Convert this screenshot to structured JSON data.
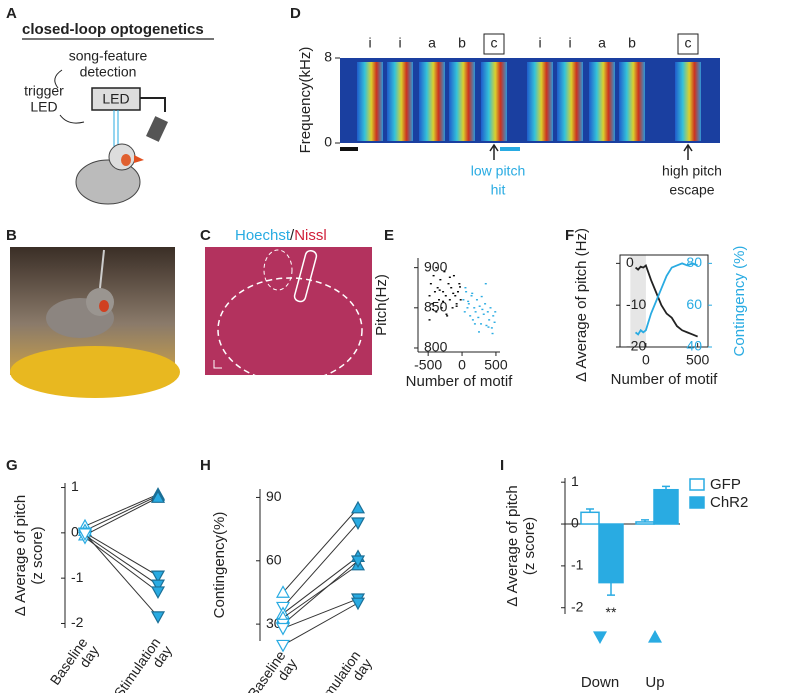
{
  "panel_labels": [
    "A",
    "B",
    "C",
    "D",
    "E",
    "F",
    "G",
    "H",
    "I"
  ],
  "schematic": {
    "title": "closed-loop optogenetics",
    "detection": [
      "song-feature",
      "detection"
    ],
    "trigger": [
      "trigger",
      "LED"
    ],
    "device": "LED"
  },
  "histology": {
    "stain_parts": [
      "Hoechst",
      "/",
      "Nissl"
    ]
  },
  "spectrogram": {
    "ylabel": "Frequency(kHz)",
    "ylim": [
      0,
      8
    ],
    "yticks": [
      0,
      8
    ],
    "syllables": [
      "i",
      "i",
      "a",
      "b",
      "c",
      "i",
      "i",
      "a",
      "b",
      "c"
    ],
    "targets": [
      false,
      false,
      false,
      false,
      true,
      false,
      false,
      false,
      false,
      true
    ],
    "annotations": [
      [
        "low pitch",
        "hit"
      ],
      [
        "high pitch",
        "escape"
      ]
    ]
  },
  "chart_data": [
    {
      "type": "scatter",
      "ylabel": "Pitch(Hz)",
      "xlabel": "Number of motif",
      "xlim": [
        -650,
        560
      ],
      "ylim": [
        795,
        912
      ],
      "xticks": [
        -500,
        0,
        500
      ],
      "yticks": [
        800,
        850,
        900
      ],
      "series": [
        {
          "color": "#000000",
          "x": [
            -480,
            -460,
            -440,
            -420,
            -400,
            -380,
            -360,
            -340,
            -320,
            -300,
            -280,
            -260,
            -240,
            -220,
            -200,
            -180,
            -160,
            -140,
            -120,
            -100,
            -80,
            -60,
            -40,
            -20,
            -480,
            -430,
            -380,
            -330,
            -280,
            -230,
            -180,
            -130,
            -80,
            -30
          ],
          "values": [
            865,
            880,
            855,
            890,
            870,
            845,
            875,
            860,
            885,
            850,
            870,
            895,
            865,
            840,
            880,
            860,
            875,
            850,
            890,
            865,
            855,
            870,
            880,
            860,
            835,
            848,
            900,
            872,
            858,
            842,
            888,
            868,
            852,
            876
          ]
        },
        {
          "color": "#29abe2",
          "x": [
            20,
            40,
            60,
            80,
            100,
            120,
            140,
            160,
            180,
            200,
            220,
            240,
            260,
            280,
            300,
            320,
            340,
            360,
            380,
            400,
            420,
            440,
            460,
            480,
            50,
            150,
            250,
            350,
            450,
            90,
            190,
            290,
            390,
            490
          ],
          "values": [
            860,
            845,
            870,
            850,
            855,
            840,
            865,
            835,
            850,
            845,
            860,
            838,
            852,
            830,
            848,
            842,
            855,
            828,
            845,
            835,
            850,
            825,
            840,
            832,
            875,
            868,
            820,
            880,
            818,
            858,
            830,
            864,
            826,
            845
          ]
        }
      ]
    },
    {
      "type": "line",
      "xlabel": "Number of motif",
      "ylabel": "Δ Average of pitch (Hz)",
      "y2label": "Contingency (%)",
      "xlim": [
        -250,
        600
      ],
      "xticks": [
        0,
        500
      ],
      "ylim": [
        -20,
        2
      ],
      "yticks": [
        -20,
        -10,
        0
      ],
      "y2lim": [
        40,
        84
      ],
      "y2ticks": [
        40,
        60,
        80
      ],
      "baseline_shade": [
        -150,
        0
      ],
      "x": [
        -100,
        -75,
        -50,
        -25,
        0,
        50,
        100,
        150,
        200,
        250,
        300,
        350,
        400,
        450,
        500
      ],
      "series": [
        {
          "color": "#222222",
          "values": [
            -1,
            -1.5,
            -0.8,
            -1,
            -0.5,
            -4,
            -7,
            -10,
            -12,
            -13,
            -15,
            -16,
            -16.5,
            -17,
            -17.5
          ]
        },
        {
          "color": "#29abe2",
          "axis": "y2",
          "values": [
            47,
            46,
            48,
            47,
            48,
            56,
            62,
            68,
            74,
            78,
            79,
            80,
            79,
            80,
            79
          ]
        }
      ]
    },
    {
      "type": "paired",
      "categories": [
        [
          "Baseline",
          "day"
        ],
        [
          "Stimulation",
          "day"
        ]
      ],
      "ylabel": [
        "Δ Average of pitch",
        "(z score)"
      ],
      "ylim": [
        -2.1,
        1.1
      ],
      "yticks": [
        -2,
        -1,
        0,
        1
      ],
      "color": "#29abe2",
      "series": [
        {
          "marker": "up",
          "values": [
            0.15,
            0.85
          ]
        },
        {
          "marker": "up",
          "values": [
            0.05,
            0.82
          ]
        },
        {
          "marker": "up",
          "values": [
            -0.05,
            0.78
          ]
        },
        {
          "marker": "down",
          "values": [
            0.0,
            -0.95
          ]
        },
        {
          "marker": "down",
          "values": [
            -0.05,
            -1.15
          ]
        },
        {
          "marker": "down",
          "values": [
            -0.1,
            -1.3
          ]
        },
        {
          "marker": "down",
          "values": [
            -0.02,
            -1.85
          ]
        }
      ]
    },
    {
      "type": "paired",
      "categories": [
        [
          "Baseline",
          "day"
        ],
        [
          "Stimulation",
          "day"
        ]
      ],
      "ylabel": [
        "Contingency(%)"
      ],
      "ylim": [
        22,
        94
      ],
      "yticks": [
        30,
        60,
        90
      ],
      "color": "#29abe2",
      "series": [
        {
          "marker": "up",
          "values": [
            45,
            85
          ]
        },
        {
          "marker": "down",
          "values": [
            38,
            78
          ]
        },
        {
          "marker": "up",
          "values": [
            35,
            62
          ]
        },
        {
          "marker": "up",
          "values": [
            33,
            58
          ]
        },
        {
          "marker": "down",
          "values": [
            30,
            60
          ]
        },
        {
          "marker": "down",
          "values": [
            28,
            42
          ]
        },
        {
          "marker": "down",
          "values": [
            20,
            40
          ]
        }
      ]
    },
    {
      "type": "bar",
      "categories": [
        "Down",
        "Up"
      ],
      "category_markers": [
        "down",
        "up"
      ],
      "ylabel": [
        "Δ Average of pitch",
        "(z score)"
      ],
      "ylim": [
        -2.15,
        1.1
      ],
      "yticks": [
        -2,
        -1,
        0,
        1
      ],
      "series": [
        {
          "name": "GFP",
          "color": "#29abe2",
          "filled": false,
          "values": [
            0.28,
            0.05
          ],
          "errors": [
            0.08,
            0.05
          ]
        },
        {
          "name": "ChR2",
          "color": "#29abe2",
          "filled": true,
          "values": [
            -1.4,
            0.82
          ],
          "errors": [
            0.3,
            0.08
          ]
        }
      ],
      "annotations": [
        "**"
      ]
    }
  ]
}
